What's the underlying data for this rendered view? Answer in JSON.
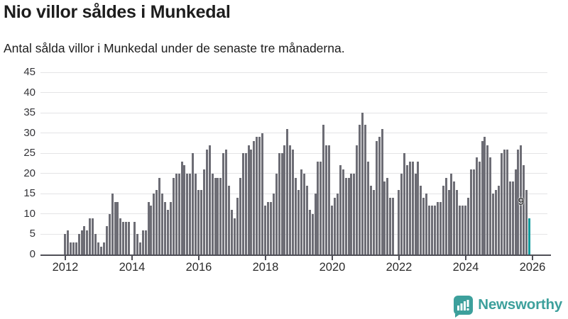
{
  "header": {
    "title": "Nio villor såldes i Munkedal",
    "subtitle": "Antal sålda villor i Munkedal under de senaste tre månaderna."
  },
  "branding": {
    "name": "Newsworthy",
    "icon": "newsworthy-speech-bubble-chart-icon",
    "color": "#3da09c"
  },
  "colors": {
    "bar": "#6d6d75",
    "highlight": "#109b9d",
    "axis": "#4f4f57",
    "gridline": "#e4e4e6",
    "text": "#1d1d1d"
  },
  "chart_data": {
    "type": "bar",
    "title": "Nio villor såldes i Munkedal",
    "subtitle": "Antal sålda villor i Munkedal under de senaste tre månaderna.",
    "xlabel": "",
    "ylabel": "",
    "ylim": [
      0,
      45
    ],
    "y_ticks": [
      0,
      5,
      10,
      15,
      20,
      25,
      30,
      35,
      40,
      45
    ],
    "x_tick_labels": [
      "2012",
      "2014",
      "2016",
      "2018",
      "2020",
      "2022",
      "2024",
      "2026"
    ],
    "grid": "horizontal",
    "legend": "none",
    "start_month": "2012-01",
    "frequency": "monthly",
    "values": [
      5,
      6,
      3,
      3,
      3,
      5,
      6,
      7,
      6,
      9,
      9,
      5,
      3,
      2,
      3,
      7,
      10,
      15,
      13,
      13,
      9,
      8,
      8,
      8,
      0,
      8,
      5,
      3,
      6,
      6,
      13,
      12,
      15,
      16,
      19,
      15,
      13,
      11,
      13,
      19,
      20,
      20,
      23,
      22,
      20,
      20,
      25,
      20,
      16,
      16,
      21,
      26,
      27,
      20,
      19,
      19,
      19,
      25,
      26,
      17,
      11,
      9,
      14,
      19,
      25,
      25,
      27,
      26,
      28,
      29,
      29,
      30,
      12,
      13,
      13,
      15,
      20,
      25,
      25,
      27,
      31,
      27,
      26,
      19,
      16,
      21,
      20,
      17,
      11,
      10,
      15,
      23,
      23,
      32,
      27,
      27,
      12,
      14,
      15,
      22,
      21,
      19,
      19,
      20,
      20,
      27,
      32,
      35,
      32,
      23,
      17,
      16,
      28,
      29,
      31,
      18,
      19,
      14,
      14,
      0,
      16,
      20,
      25,
      22,
      23,
      23,
      20,
      23,
      17,
      14,
      15,
      12,
      12,
      12,
      13,
      13,
      17,
      19,
      16,
      20,
      18,
      16,
      12,
      12,
      12,
      14,
      21,
      21,
      24,
      23,
      28,
      29,
      27,
      24,
      15,
      16,
      17,
      25,
      26,
      26,
      18,
      18,
      21,
      26,
      27,
      22,
      16,
      9
    ],
    "highlight_index": 167,
    "highlight_value": 9,
    "highlight_label": "9"
  }
}
